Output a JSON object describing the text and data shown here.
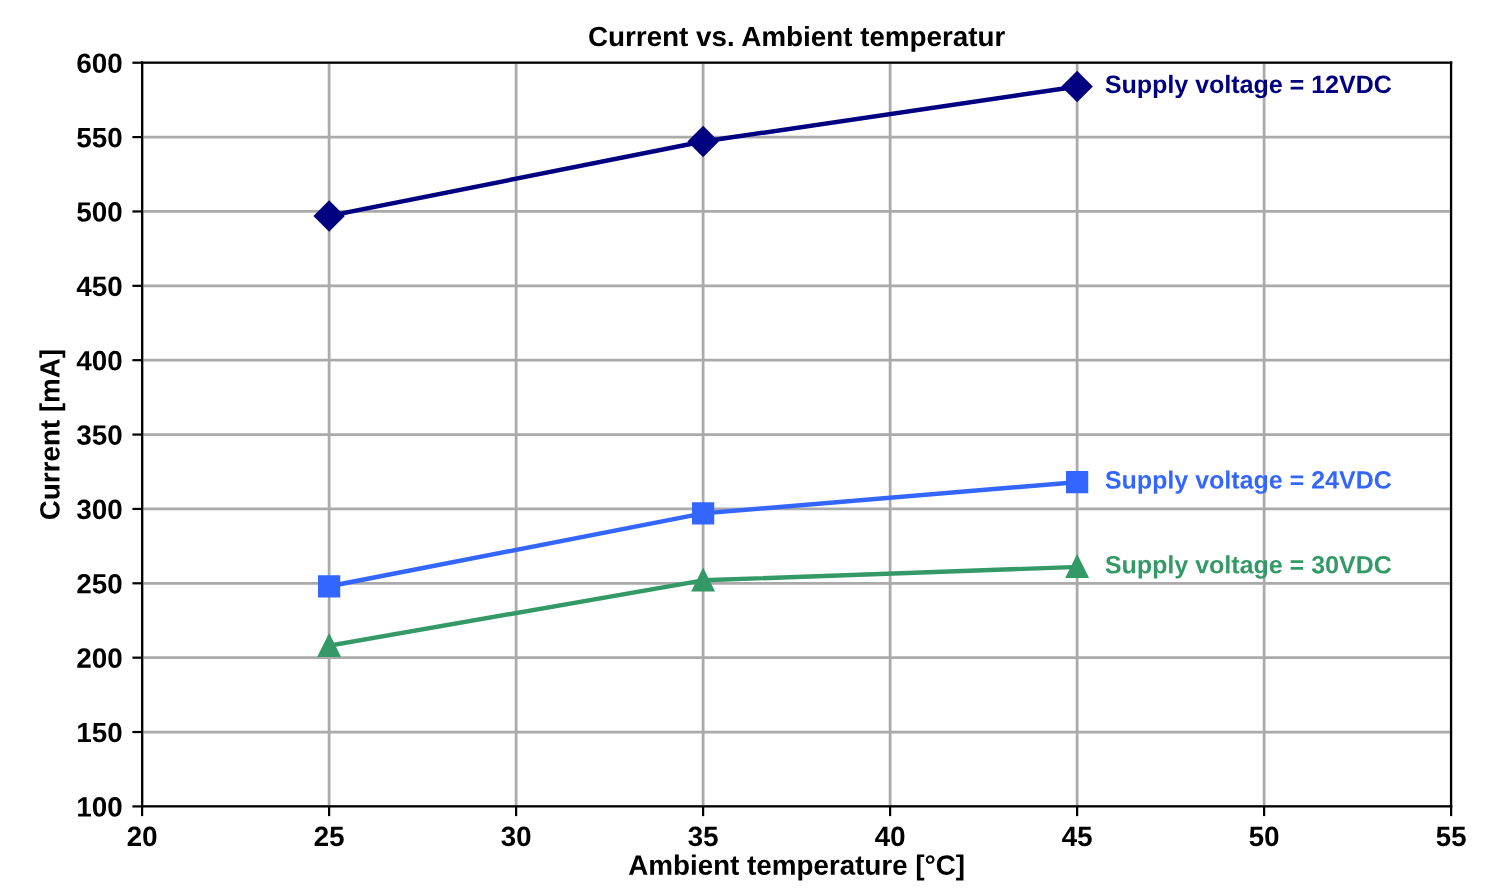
{
  "chart_data": {
    "type": "line",
    "title": "Current vs. Ambient temperatur",
    "xlabel": "Ambient temperature [°C]",
    "ylabel": "Current [mA]",
    "x": [
      25,
      35,
      45
    ],
    "series": [
      {
        "name": "Supply voltage = 12VDC",
        "color": "#000080",
        "marker": "diamond",
        "values": [
          497,
          547,
          584
        ]
      },
      {
        "name": "Supply voltage = 24VDC",
        "color": "#3366ff",
        "marker": "square",
        "values": [
          248,
          297,
          318
        ]
      },
      {
        "name": "Supply voltage = 30VDC",
        "color": "#339966",
        "marker": "triangle",
        "values": [
          208,
          252,
          261
        ]
      }
    ],
    "xlim": [
      20,
      55
    ],
    "xticks": [
      20,
      25,
      30,
      35,
      40,
      45,
      50,
      55
    ],
    "ylim": [
      100,
      600
    ],
    "yticks": [
      100,
      150,
      200,
      250,
      300,
      350,
      400,
      450,
      500,
      550,
      600
    ],
    "grid": true,
    "legend": false,
    "line_style": "solid"
  }
}
